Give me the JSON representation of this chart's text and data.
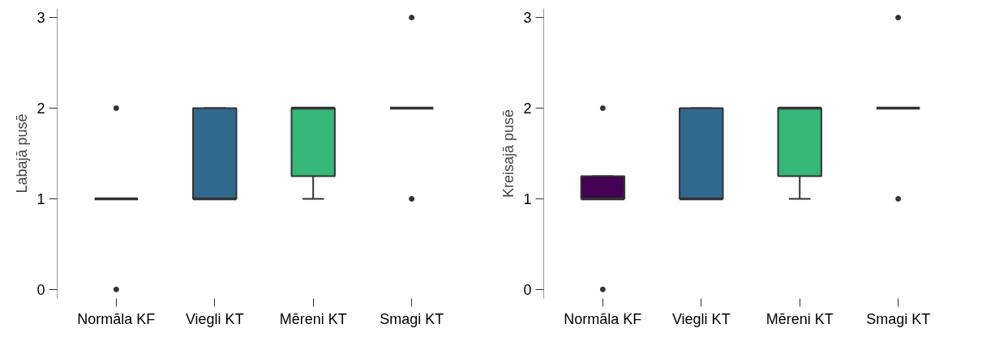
{
  "chart_data": [
    {
      "type": "box",
      "ylabel": "Labajā pusē",
      "categories": [
        "Normāla KF",
        "Viegli KT",
        "Mēreni KT",
        "Smagi KT"
      ],
      "colors": [
        null,
        "#31688e",
        "#35b779",
        null
      ],
      "ylim": [
        -0.1,
        3.1
      ],
      "yticks": [
        0,
        1,
        2,
        3
      ],
      "grid": false,
      "boxes": [
        {
          "low": 1,
          "q1": 1,
          "median": 1,
          "q3": 1,
          "high": 1,
          "outliers": [
            0,
            2
          ]
        },
        {
          "low": 1,
          "q1": 1,
          "median": 1,
          "q3": 2,
          "high": 2
        },
        {
          "low": 1,
          "q1": 1.25,
          "median": 2,
          "q3": 2,
          "high": 2
        },
        {
          "low": 2,
          "q1": 2,
          "median": 2,
          "q3": 2,
          "high": 2,
          "outliers": [
            1,
            3
          ]
        }
      ]
    },
    {
      "type": "box",
      "ylabel": "Kreisajā pusē",
      "categories": [
        "Normāla KF",
        "Viegli KT",
        "Mēreni KT",
        "Smagi KT"
      ],
      "colors": [
        "#440154",
        "#31688e",
        "#35b779",
        null
      ],
      "ylim": [
        -0.1,
        3.1
      ],
      "yticks": [
        0,
        1,
        2,
        3
      ],
      "grid": false,
      "boxes": [
        {
          "low": 1,
          "q1": 1,
          "median": 1,
          "q3": 1.25,
          "high": 1.25,
          "outliers": [
            0,
            2
          ]
        },
        {
          "low": 1,
          "q1": 1,
          "median": 1,
          "q3": 2,
          "high": 2
        },
        {
          "low": 1,
          "q1": 1.25,
          "median": 2,
          "q3": 2,
          "high": 2
        },
        {
          "low": 2,
          "q1": 2,
          "median": 2,
          "q3": 2,
          "high": 2,
          "outliers": [
            1,
            3
          ]
        }
      ]
    }
  ]
}
